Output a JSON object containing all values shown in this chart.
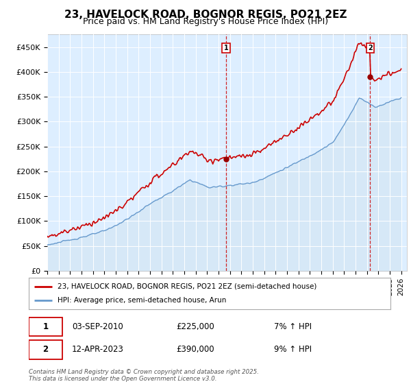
{
  "title": "23, HAVELOCK ROAD, BOGNOR REGIS, PO21 2EZ",
  "subtitle": "Price paid vs. HM Land Registry's House Price Index (HPI)",
  "ylim": [
    0,
    475000
  ],
  "yticks": [
    0,
    50000,
    100000,
    150000,
    200000,
    250000,
    300000,
    350000,
    400000,
    450000
  ],
  "ytick_labels": [
    "£0",
    "£50K",
    "£100K",
    "£150K",
    "£200K",
    "£250K",
    "£300K",
    "£350K",
    "£400K",
    "£450K"
  ],
  "xlim_start": 1995.0,
  "xlim_end": 2026.5,
  "sale1_x": 2010.67,
  "sale1_y": 225000,
  "sale1_label": "1",
  "sale1_date": "03-SEP-2010",
  "sale1_price": "£225,000",
  "sale1_hpi": "7% ↑ HPI",
  "sale2_x": 2023.28,
  "sale2_y": 390000,
  "sale2_label": "2",
  "sale2_date": "12-APR-2023",
  "sale2_price": "£390,000",
  "sale2_hpi": "9% ↑ HPI",
  "line1_color": "#cc0000",
  "line2_color": "#6699cc",
  "line2_fill_color": "#d6e8f7",
  "plot_bg_color": "#ddeeff",
  "grid_color": "#ffffff",
  "legend1_label": "23, HAVELOCK ROAD, BOGNOR REGIS, PO21 2EZ (semi-detached house)",
  "legend2_label": "HPI: Average price, semi-detached house, Arun",
  "footer": "Contains HM Land Registry data © Crown copyright and database right 2025.\nThis data is licensed under the Open Government Licence v3.0.",
  "title_fontsize": 11,
  "subtitle_fontsize": 9
}
